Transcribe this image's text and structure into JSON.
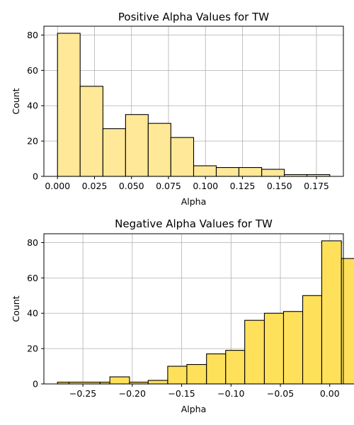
{
  "chart_data": [
    {
      "type": "bar",
      "title": "Positive Alpha Values for TW",
      "xlabel": "Alpha",
      "ylabel": "Count",
      "bar_color": "#ffe897",
      "edge_color": "#000000",
      "grid": true,
      "xlim": [
        -0.0092,
        0.1932
      ],
      "ylim": [
        0,
        85
      ],
      "xticks": [
        0.0,
        0.025,
        0.05,
        0.075,
        0.1,
        0.125,
        0.15,
        0.175
      ],
      "xtick_labels": [
        "0.000",
        "0.025",
        "0.050",
        "0.075",
        "0.100",
        "0.125",
        "0.150",
        "0.175"
      ],
      "yticks": [
        0,
        20,
        40,
        60,
        80
      ],
      "ytick_labels": [
        "0",
        "20",
        "40",
        "60",
        "80"
      ],
      "bins": [
        {
          "x0": 0.0,
          "x1": 0.0153,
          "count": 81
        },
        {
          "x0": 0.0153,
          "x1": 0.0307,
          "count": 51
        },
        {
          "x0": 0.0307,
          "x1": 0.046,
          "count": 27
        },
        {
          "x0": 0.046,
          "x1": 0.0613,
          "count": 35
        },
        {
          "x0": 0.0613,
          "x1": 0.0766,
          "count": 30
        },
        {
          "x0": 0.0766,
          "x1": 0.092,
          "count": 22
        },
        {
          "x0": 0.092,
          "x1": 0.1073,
          "count": 6
        },
        {
          "x0": 0.1073,
          "x1": 0.1226,
          "count": 5
        },
        {
          "x0": 0.1226,
          "x1": 0.138,
          "count": 5
        },
        {
          "x0": 0.138,
          "x1": 0.1533,
          "count": 4
        },
        {
          "x0": 0.1533,
          "x1": 0.1686,
          "count": 1
        },
        {
          "x0": 0.1686,
          "x1": 0.184,
          "count": 1
        }
      ]
    },
    {
      "type": "bar",
      "title": "Negative Alpha Values for TW",
      "xlabel": "Alpha",
      "ylabel": "Count",
      "bar_color": "#ffe05a",
      "edge_color": "#000000",
      "grid": true,
      "xlim": [
        -0.2895,
        0.0138
      ],
      "ylim": [
        0,
        85
      ],
      "xticks": [
        -0.25,
        -0.2,
        -0.15,
        -0.1,
        -0.05,
        0.0
      ],
      "xtick_labels": [
        "−0.25",
        "−0.20",
        "−0.15",
        "−0.10",
        "−0.05",
        "0.00"
      ],
      "yticks": [
        0,
        20,
        40,
        60,
        80
      ],
      "ytick_labels": [
        "0",
        "20",
        "40",
        "60",
        "80"
      ],
      "bins": [
        {
          "x0": -0.2757,
          "x1": -0.2641,
          "count": 1
        },
        {
          "x0": -0.2641,
          "x1": -0.2326,
          "count": 1
        },
        {
          "x0": -0.2326,
          "x1": -0.2227,
          "count": 1
        },
        {
          "x0": -0.2227,
          "x1": -0.2028,
          "count": 4
        },
        {
          "x0": -0.2028,
          "x1": -0.1839,
          "count": 1
        },
        {
          "x0": -0.1839,
          "x1": -0.1641,
          "count": 2
        },
        {
          "x0": -0.1641,
          "x1": -0.1447,
          "count": 10
        },
        {
          "x0": -0.1447,
          "x1": -0.1248,
          "count": 11
        },
        {
          "x0": -0.1248,
          "x1": -0.1054,
          "count": 17
        },
        {
          "x0": -0.1054,
          "x1": -0.0861,
          "count": 19
        },
        {
          "x0": -0.0861,
          "x1": -0.0662,
          "count": 36
        },
        {
          "x0": -0.0662,
          "x1": -0.0468,
          "count": 40
        },
        {
          "x0": -0.0468,
          "x1": -0.0274,
          "count": 41
        },
        {
          "x0": -0.0274,
          "x1": -0.0081,
          "count": 50
        },
        {
          "x0": -0.0081,
          "x1": 0.0118,
          "count": 81
        },
        {
          "x0": 0.0118,
          "x1": 0.0118,
          "count": 71
        }
      ]
    }
  ]
}
